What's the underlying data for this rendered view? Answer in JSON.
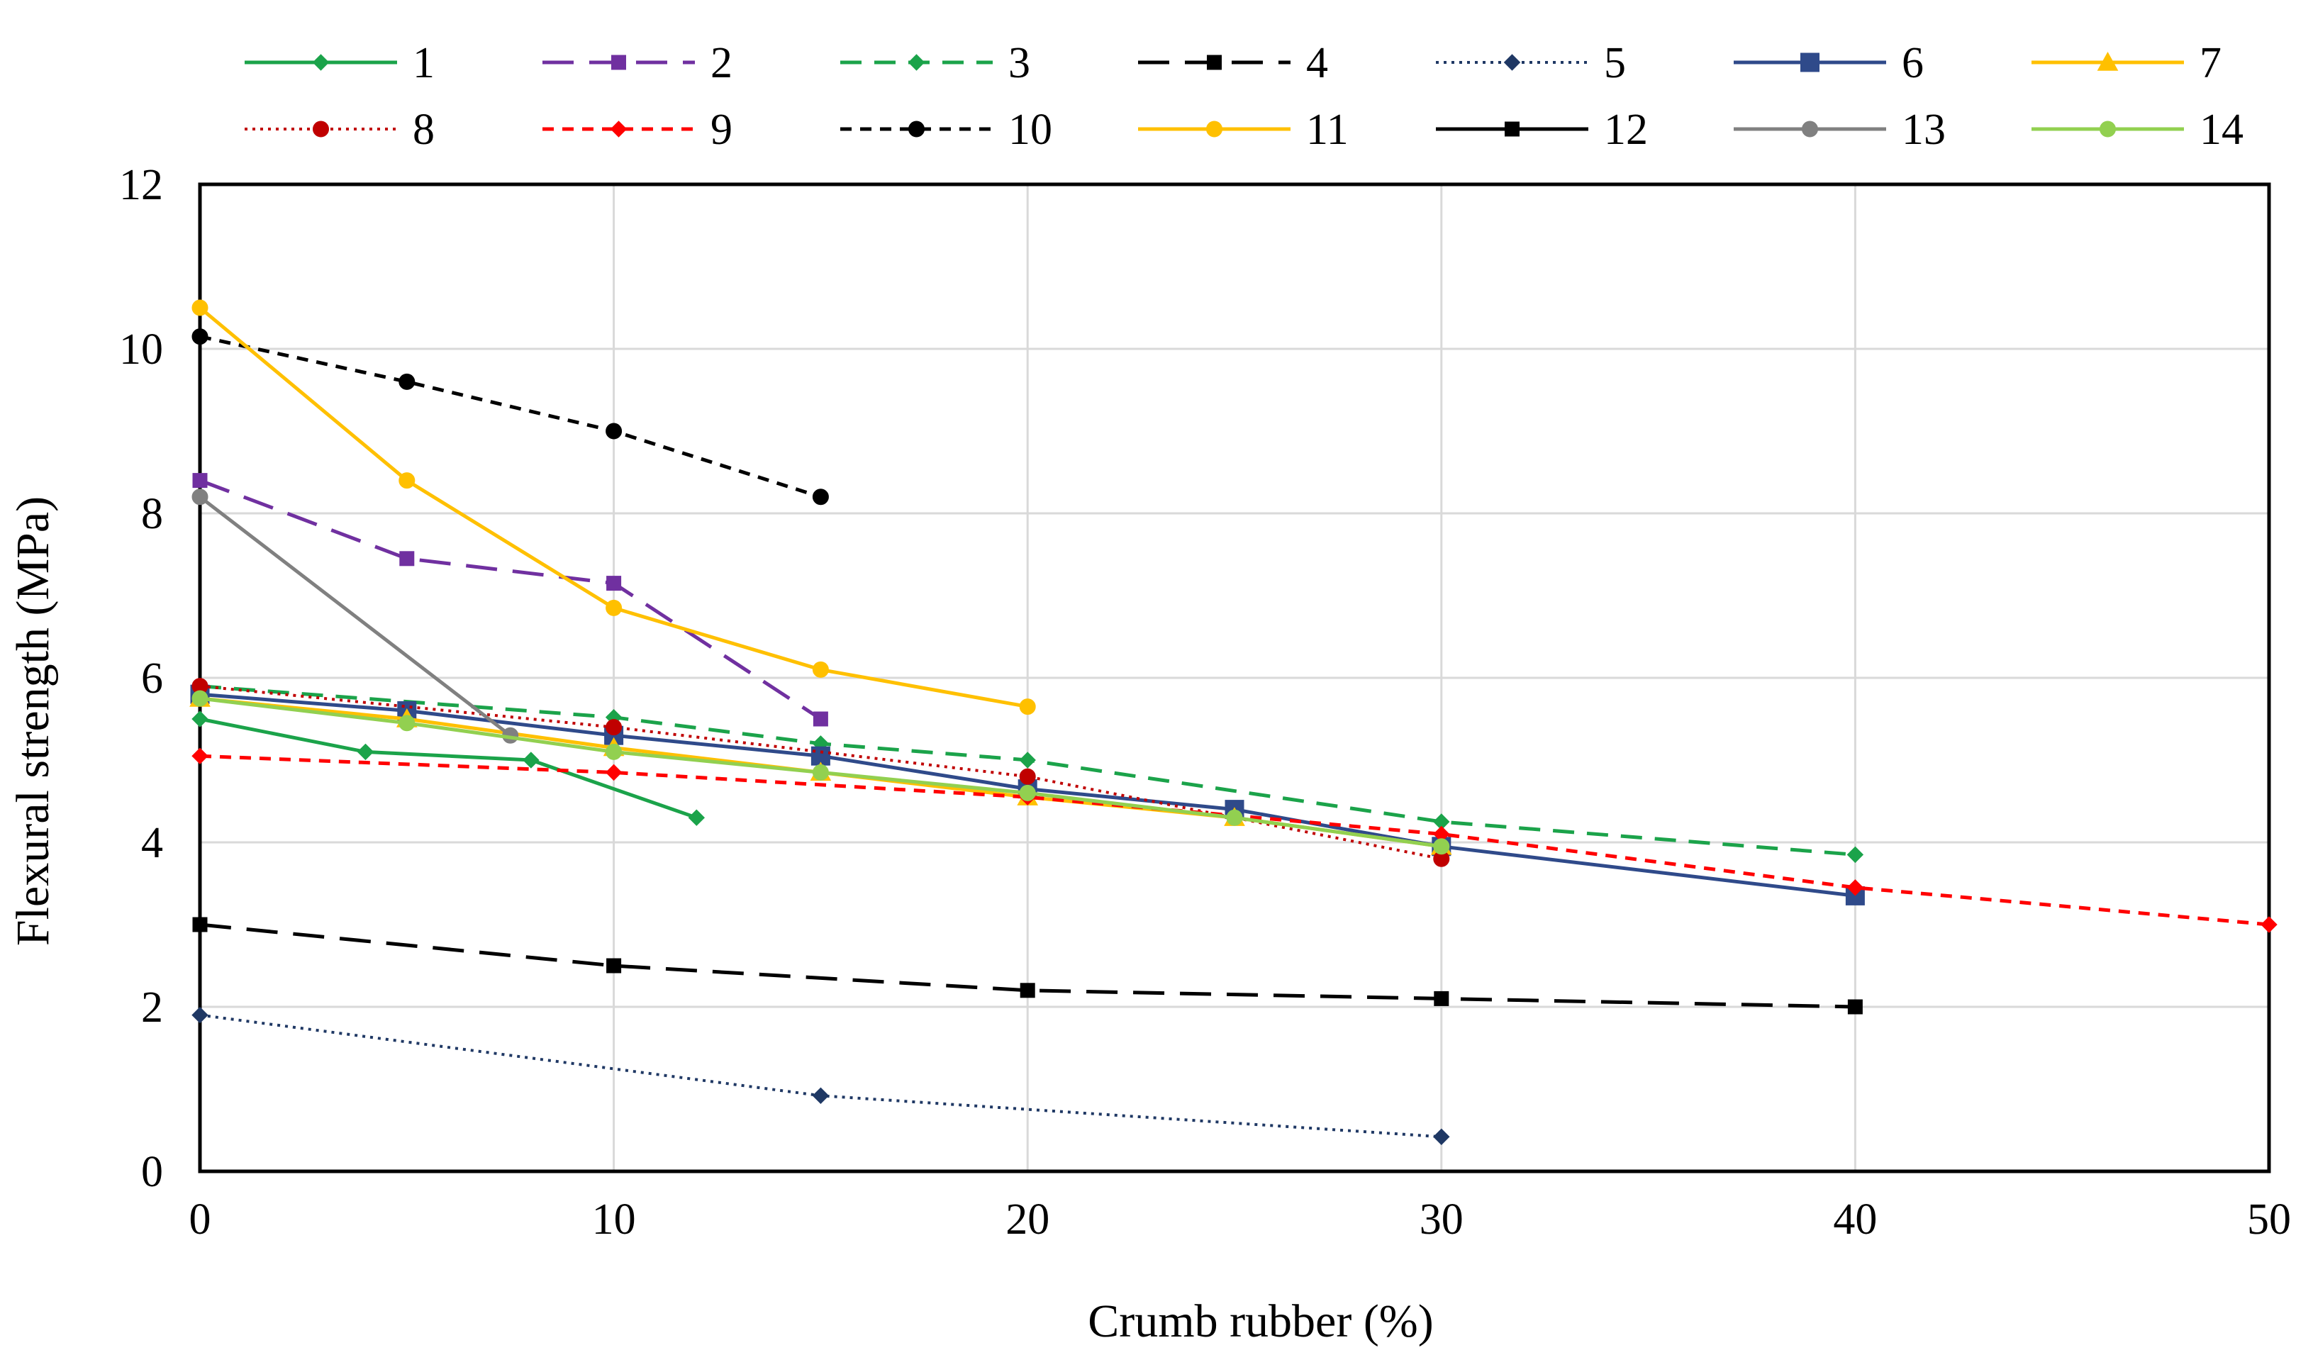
{
  "chart_data": {
    "type": "line",
    "title": "",
    "xlabel": "Crumb rubber (%)",
    "ylabel": "Flexural strength (MPa)",
    "xlim": [
      0,
      50
    ],
    "ylim": [
      0,
      12
    ],
    "xticks": [
      "0",
      "10",
      "20",
      "30",
      "40",
      "50"
    ],
    "yticks": [
      "0",
      "2",
      "4",
      "6",
      "8",
      "10",
      "12"
    ],
    "grid": true,
    "legend_position": "top",
    "series": [
      {
        "name": "1",
        "color": "#1BA34A",
        "dash": "solid",
        "marker": "diamond",
        "x": [
          0,
          4,
          8,
          12
        ],
        "y": [
          5.5,
          5.1,
          5.0,
          4.3
        ]
      },
      {
        "name": "2",
        "color": "#7030A0",
        "dash": "longdash",
        "marker": "square",
        "x": [
          0,
          5,
          10,
          15
        ],
        "y": [
          8.4,
          7.45,
          7.15,
          5.5
        ]
      },
      {
        "name": "3",
        "color": "#1BA34A",
        "dash": "dash",
        "marker": "diamond",
        "x": [
          0,
          10,
          15,
          20,
          30,
          40
        ],
        "y": [
          5.9,
          5.52,
          5.2,
          5.0,
          4.25,
          3.85
        ]
      },
      {
        "name": "4",
        "color": "#000000",
        "dash": "longdash",
        "marker": "square",
        "x": [
          0,
          10,
          20,
          30,
          40
        ],
        "y": [
          3.0,
          2.5,
          2.2,
          2.1,
          2.0
        ]
      },
      {
        "name": "5",
        "color": "#1F3864",
        "dash": "dot",
        "marker": "diamond",
        "x": [
          0,
          15,
          30
        ],
        "y": [
          1.9,
          0.92,
          0.42
        ]
      },
      {
        "name": "6",
        "color": "#2F4A8A",
        "dash": "solid",
        "marker": "bigsquare",
        "x": [
          0,
          5,
          10,
          15,
          20,
          25,
          30,
          40
        ],
        "y": [
          5.8,
          5.6,
          5.3,
          5.05,
          4.65,
          4.4,
          3.95,
          3.35
        ]
      },
      {
        "name": "7",
        "color": "#FFC000",
        "dash": "solid",
        "marker": "triangle",
        "x": [
          0,
          5,
          10,
          15,
          20,
          25,
          30
        ],
        "y": [
          5.75,
          5.5,
          5.15,
          4.85,
          4.55,
          4.3,
          3.95
        ]
      },
      {
        "name": "8",
        "color": "#C00000",
        "dash": "dot",
        "marker": "circle",
        "x": [
          0,
          10,
          20,
          30
        ],
        "y": [
          5.9,
          5.4,
          4.8,
          3.8
        ]
      },
      {
        "name": "9",
        "color": "#FF0000",
        "dash": "shortdash",
        "marker": "diamond",
        "x": [
          0,
          10,
          20,
          30,
          40,
          50
        ],
        "y": [
          5.05,
          4.85,
          4.55,
          4.1,
          3.45,
          3.0
        ]
      },
      {
        "name": "10",
        "color": "#000000",
        "dash": "shortdash",
        "marker": "circle",
        "x": [
          0,
          5,
          10,
          15
        ],
        "y": [
          10.15,
          9.6,
          9.0,
          8.2
        ]
      },
      {
        "name": "11",
        "color": "#FFC000",
        "dash": "solid",
        "marker": "circle",
        "x": [
          0,
          5,
          10,
          15,
          20
        ],
        "y": [
          10.5,
          8.4,
          6.85,
          6.1,
          5.65
        ]
      },
      {
        "name": "12",
        "color": "#000000",
        "dash": "solid",
        "marker": "square",
        "x": [],
        "y": []
      },
      {
        "name": "13",
        "color": "#808080",
        "dash": "solid",
        "marker": "circle",
        "x": [
          0,
          7.5
        ],
        "y": [
          8.2,
          5.3
        ]
      },
      {
        "name": "14",
        "color": "#92D050",
        "dash": "solid",
        "marker": "circle",
        "x": [
          0,
          5,
          10,
          15,
          20,
          25,
          30
        ],
        "y": [
          5.75,
          5.45,
          5.1,
          4.85,
          4.6,
          4.3,
          3.95
        ]
      }
    ]
  }
}
